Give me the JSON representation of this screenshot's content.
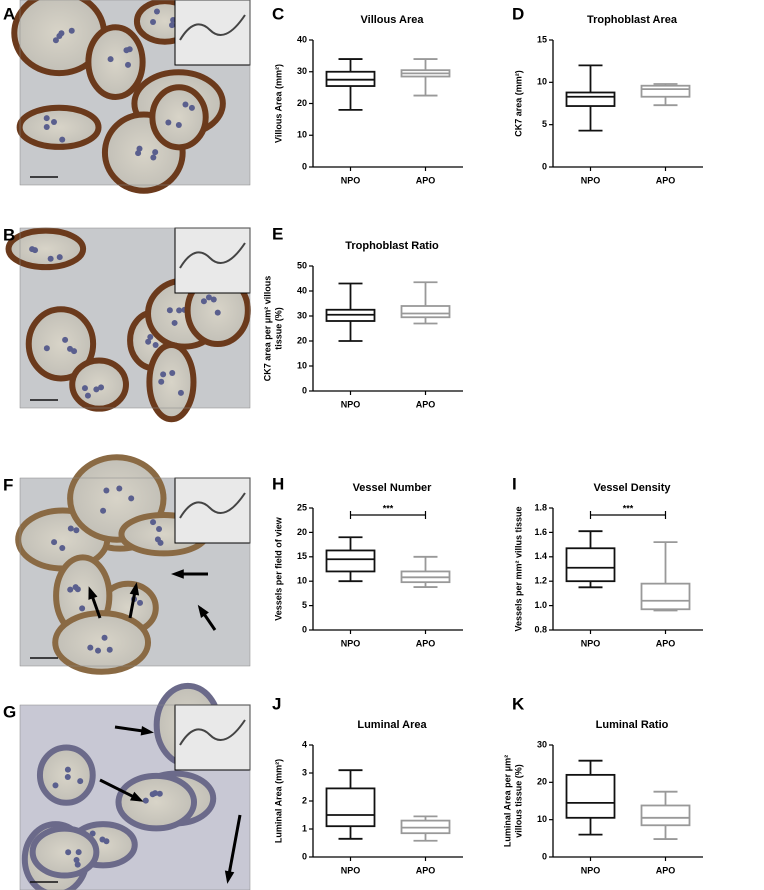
{
  "image_panels": [
    "A",
    "B",
    "F",
    "G"
  ],
  "chart_data": [
    {
      "type": "box",
      "panel": "C",
      "title": "Villous Area",
      "ylabel": [
        "Villous Area (mm²)"
      ],
      "categories": [
        "NPO",
        "APO"
      ],
      "colors": [
        "#111111",
        "#999999"
      ],
      "boxes": [
        [
          18,
          25.5,
          27.5,
          30,
          34
        ],
        [
          22.5,
          28.5,
          29.5,
          30.5,
          34
        ]
      ],
      "ylim": [
        0,
        40
      ],
      "yticks": [
        0,
        10,
        20,
        30,
        40
      ]
    },
    {
      "type": "box",
      "panel": "D",
      "title": "Trophoblast Area",
      "ylabel": [
        "CK7 area (mm²)"
      ],
      "categories": [
        "NPO",
        "APO"
      ],
      "colors": [
        "#111111",
        "#999999"
      ],
      "boxes": [
        [
          4.3,
          7.2,
          8.3,
          8.8,
          12
        ],
        [
          7.3,
          8.3,
          9.2,
          9.6,
          9.8
        ]
      ],
      "ylim": [
        0,
        15
      ],
      "yticks": [
        0,
        5,
        10,
        15
      ]
    },
    {
      "type": "box",
      "panel": "E",
      "title": "Trophoblast Ratio",
      "ylabel": [
        "CK7 area per μm² villous",
        "tissue (%)"
      ],
      "categories": [
        "NPO",
        "APO"
      ],
      "colors": [
        "#111111",
        "#999999"
      ],
      "boxes": [
        [
          20,
          28,
          30.5,
          32.5,
          43
        ],
        [
          27,
          29.5,
          31,
          34,
          43.5
        ]
      ],
      "ylim": [
        0,
        50
      ],
      "yticks": [
        0,
        10,
        20,
        30,
        40,
        50
      ]
    },
    {
      "type": "box",
      "panel": "H",
      "title": "Vessel Number",
      "ylabel": [
        "Vessels per field of view"
      ],
      "categories": [
        "NPO",
        "APO"
      ],
      "colors": [
        "#111111",
        "#999999"
      ],
      "boxes": [
        [
          10,
          12,
          14.5,
          16.3,
          19
        ],
        [
          8.8,
          9.8,
          10.8,
          12,
          15
        ]
      ],
      "ylim": [
        0,
        25
      ],
      "yticks": [
        0,
        5,
        10,
        15,
        20,
        25
      ],
      "annotation": "***"
    },
    {
      "type": "box",
      "panel": "I",
      "title": "Vessel Density",
      "ylabel": [
        "Vessels per mm² villus tissue"
      ],
      "categories": [
        "NPO",
        "APO"
      ],
      "colors": [
        "#111111",
        "#999999"
      ],
      "boxes": [
        [
          1.15,
          1.2,
          1.31,
          1.47,
          1.61
        ],
        [
          0.96,
          0.97,
          1.04,
          1.18,
          1.52
        ]
      ],
      "ylim": [
        0.8,
        1.8
      ],
      "yticks": [
        0.8,
        {
          "value": 1,
          "label": "1.0"
        },
        1.2,
        1.4,
        1.6,
        1.8
      ],
      "annotation": "***"
    },
    {
      "type": "box",
      "panel": "J",
      "title": "Luminal Area",
      "ylabel": [
        "Luminal Area (mm²)"
      ],
      "categories": [
        "NPO",
        "APO"
      ],
      "colors": [
        "#111111",
        "#999999"
      ],
      "boxes": [
        [
          0.65,
          1.1,
          1.5,
          2.45,
          3.1
        ],
        [
          0.58,
          0.85,
          1.05,
          1.3,
          1.45
        ]
      ],
      "ylim": [
        0,
        4
      ],
      "yticks": [
        0,
        1,
        2,
        3,
        4
      ]
    },
    {
      "type": "box",
      "panel": "K",
      "title": "Luminal Ratio",
      "ylabel": [
        "Luminal Area per μm²",
        "villous tissue (%)"
      ],
      "categories": [
        "NPO",
        "APO"
      ],
      "colors": [
        "#111111",
        "#999999"
      ],
      "boxes": [
        [
          6,
          10.5,
          14.5,
          22,
          25.8
        ],
        [
          4.8,
          8.5,
          10.5,
          13.8,
          17.5
        ]
      ],
      "ylim": [
        0,
        30
      ],
      "yticks": [
        0,
        10,
        20,
        30
      ]
    }
  ]
}
